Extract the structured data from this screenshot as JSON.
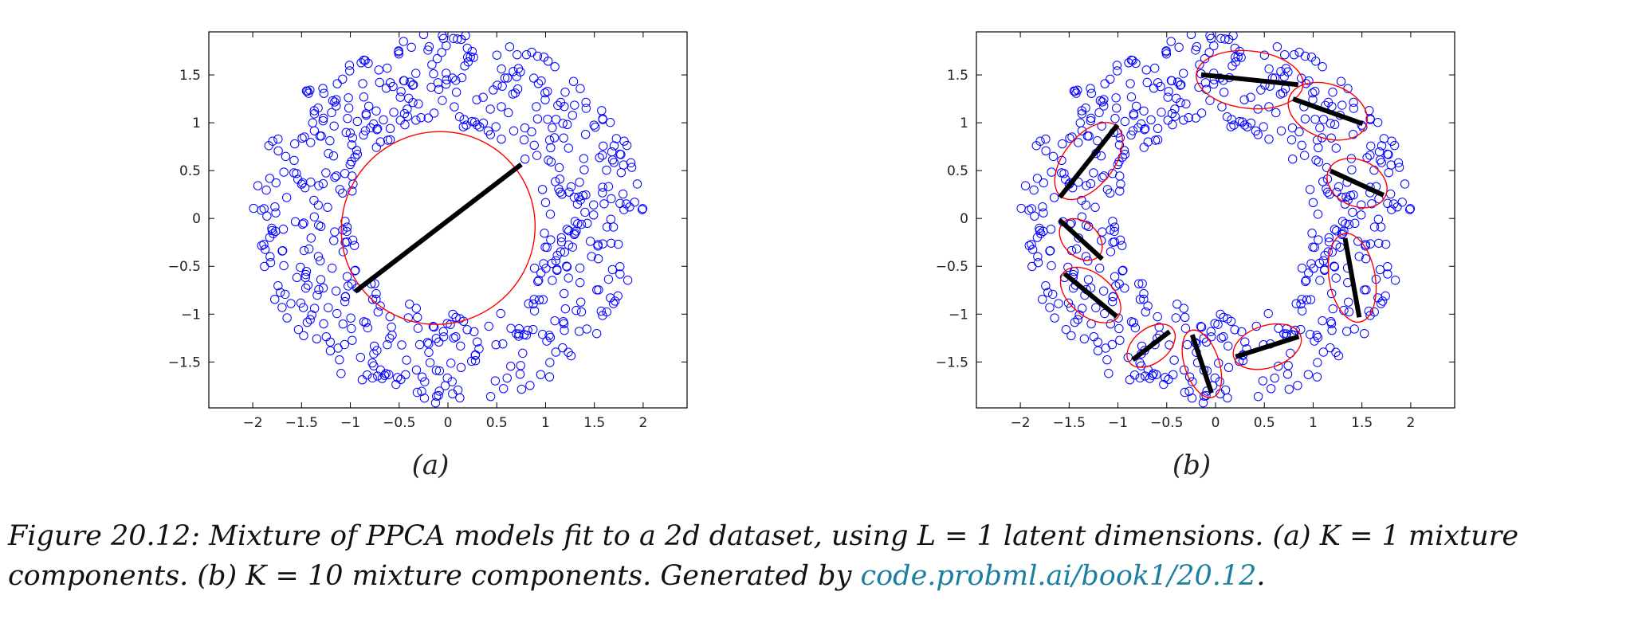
{
  "chart_data": [
    {
      "type": "scatter",
      "panel_label": "(a)",
      "xlim": [
        -2.45,
        2.45
      ],
      "ylim": [
        -1.98,
        1.95
      ],
      "xticks": [
        -2,
        -1.5,
        -1,
        -0.5,
        0,
        0.5,
        1,
        1.5,
        2
      ],
      "yticks": [
        -1.5,
        -1,
        -0.5,
        0,
        0.5,
        1,
        1.5
      ],
      "grid": false,
      "marker": "open circle",
      "point_color": "#0000ff",
      "component_ellipse_color": "#ff0000",
      "principal_axis_color": "#000000",
      "points": {
        "description": "annulus of samples around origin",
        "inner_radius": 1.0,
        "outer_radius": 2.0,
        "count": 600,
        "seed": 7
      },
      "components": [
        {
          "center": [
            -0.1,
            -0.1
          ],
          "axis_half_length": 1.08,
          "angle_deg": 38,
          "ellipse_rx": 1.0,
          "ellipse_ry": 1.0
        }
      ]
    },
    {
      "type": "scatter",
      "panel_label": "(b)",
      "xlim": [
        -2.45,
        2.45
      ],
      "ylim": [
        -1.98,
        1.95
      ],
      "xticks": [
        -2,
        -1.5,
        -1,
        -0.5,
        0,
        0.5,
        1,
        1.5,
        2
      ],
      "yticks": [
        -1.5,
        -1,
        -0.5,
        0,
        0.5,
        1,
        1.5
      ],
      "grid": false,
      "marker": "open circle",
      "point_color": "#0000ff",
      "component_ellipse_color": "#ff0000",
      "principal_axis_color": "#000000",
      "points": {
        "description": "annulus of samples around origin",
        "inner_radius": 1.0,
        "outer_radius": 2.0,
        "count": 600,
        "seed": 7
      },
      "components": [
        {
          "center": [
            0.35,
            1.45
          ],
          "axis_half_length": 0.5,
          "angle_deg": -6,
          "ellipse_rx": 0.55,
          "ellipse_ry": 0.3
        },
        {
          "center": [
            1.15,
            1.12
          ],
          "axis_half_length": 0.38,
          "angle_deg": -20,
          "ellipse_rx": 0.42,
          "ellipse_ry": 0.28
        },
        {
          "center": [
            1.45,
            0.37
          ],
          "axis_half_length": 0.3,
          "angle_deg": -25,
          "ellipse_rx": 0.32,
          "ellipse_ry": 0.24
        },
        {
          "center": [
            1.4,
            -0.62
          ],
          "axis_half_length": 0.42,
          "angle_deg": -80,
          "ellipse_rx": 0.46,
          "ellipse_ry": 0.24
        },
        {
          "center": [
            0.53,
            -1.34
          ],
          "axis_half_length": 0.34,
          "angle_deg": 18,
          "ellipse_rx": 0.36,
          "ellipse_ry": 0.22
        },
        {
          "center": [
            -0.14,
            -1.52
          ],
          "axis_half_length": 0.32,
          "angle_deg": -72,
          "ellipse_rx": 0.36,
          "ellipse_ry": 0.18
        },
        {
          "center": [
            -0.66,
            -1.33
          ],
          "axis_half_length": 0.24,
          "angle_deg": 38,
          "ellipse_rx": 0.28,
          "ellipse_ry": 0.18
        },
        {
          "center": [
            -1.28,
            -0.8
          ],
          "axis_half_length": 0.35,
          "angle_deg": -40,
          "ellipse_rx": 0.36,
          "ellipse_ry": 0.22
        },
        {
          "center": [
            -1.38,
            -0.22
          ],
          "axis_half_length": 0.3,
          "angle_deg": -43,
          "ellipse_rx": 0.25,
          "ellipse_ry": 0.18
        },
        {
          "center": [
            -1.3,
            0.6
          ],
          "axis_half_length": 0.48,
          "angle_deg": 52,
          "ellipse_rx": 0.46,
          "ellipse_ry": 0.26
        }
      ]
    }
  ],
  "caption": {
    "text": "Figure 20.12: Mixture of PPCA models fit to a 2d dataset, using L = 1 latent dimensions. (a) K = 1 mixture",
    "text_line2": "components. (b) K = 10 mixture components. Generated by ",
    "link": "code.probml.ai/book1/20.12",
    "end": "."
  }
}
